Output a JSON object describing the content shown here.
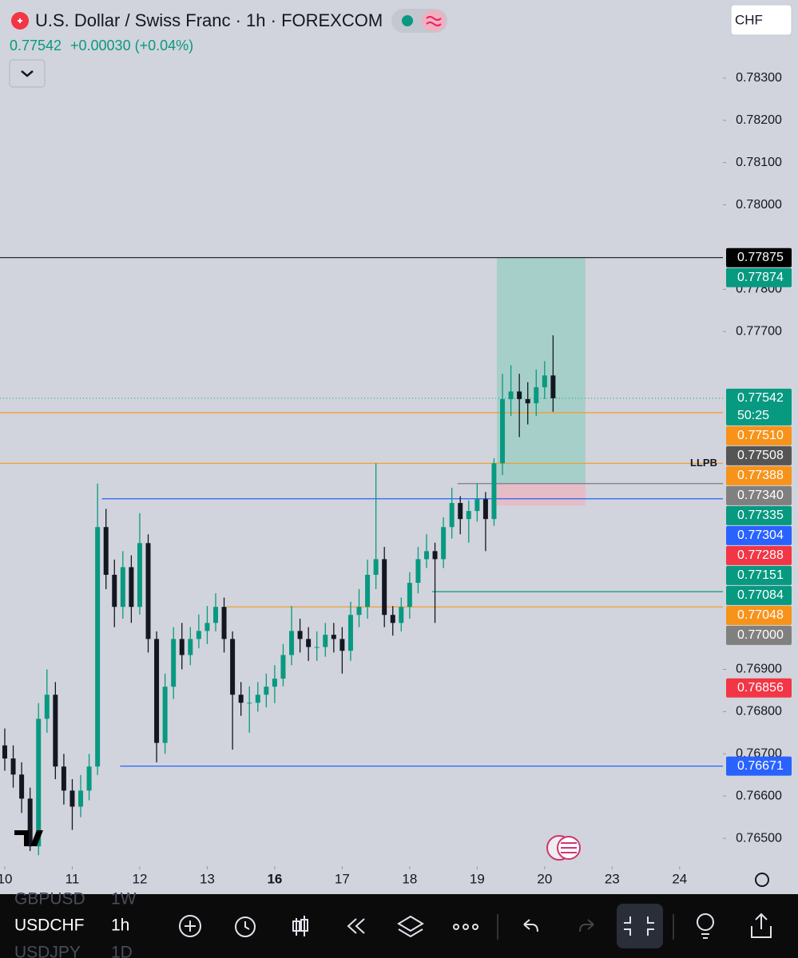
{
  "header": {
    "title": "U.S. Dollar / Swiss Franc · 1h · FOREXCOM",
    "price": "0.77542",
    "change": "+0.00030 (+0.04%)",
    "currency": "CHF"
  },
  "chart_data": {
    "type": "candlestick",
    "up_color": "#089981",
    "down_color": "#131722",
    "xlim": [
      -1.7,
      255.4
    ],
    "ylim": [
      0.76434,
      0.78485
    ],
    "xticks": [
      {
        "value": 0,
        "label": "10"
      },
      {
        "value": 24,
        "label": "11"
      },
      {
        "value": 48,
        "label": "12"
      },
      {
        "value": 72,
        "label": "13"
      },
      {
        "value": 96,
        "label": "16",
        "bold": true
      },
      {
        "value": 120,
        "label": "17"
      },
      {
        "value": 144,
        "label": "18"
      },
      {
        "value": 168,
        "label": "19"
      },
      {
        "value": 192,
        "label": "20"
      },
      {
        "value": 216,
        "label": "23"
      },
      {
        "value": 240,
        "label": "24"
      }
    ],
    "yticks": [
      {
        "value": 0.783,
        "label": "0.78300"
      },
      {
        "value": 0.782,
        "label": "0.78200"
      },
      {
        "value": 0.781,
        "label": "0.78100"
      },
      {
        "value": 0.78,
        "label": "0.78000"
      },
      {
        "value": 0.778,
        "label": "0.77800"
      },
      {
        "value": 0.777,
        "label": "0.77700"
      },
      {
        "value": 0.769,
        "label": "0.76900"
      },
      {
        "value": 0.768,
        "label": "0.76800"
      },
      {
        "value": 0.767,
        "label": "0.76700"
      },
      {
        "value": 0.766,
        "label": "0.76600"
      },
      {
        "value": 0.765,
        "label": "0.76500"
      }
    ],
    "x": [
      0,
      3,
      6,
      9,
      12,
      15,
      18,
      21,
      24,
      27,
      30,
      33,
      36,
      39,
      42,
      45,
      48,
      51,
      54,
      57,
      60,
      63,
      66,
      69,
      72,
      75,
      78,
      81,
      84,
      87,
      90,
      93,
      96,
      99,
      102,
      105,
      108,
      111,
      114,
      117,
      120,
      123,
      126,
      129,
      132,
      135,
      138,
      141,
      144,
      147,
      150,
      153,
      156,
      159,
      162,
      165,
      168,
      171,
      174,
      177,
      180,
      183,
      186,
      189,
      192,
      195
    ],
    "candles": [
      [
        0.7672,
        0.7676,
        0.7666,
        0.76689
      ],
      [
        0.76689,
        0.7672,
        0.7662,
        0.76651
      ],
      [
        0.76651,
        0.7668,
        0.7656,
        0.76594
      ],
      [
        0.76594,
        0.7662,
        0.7647,
        0.76481
      ],
      [
        0.76481,
        0.7682,
        0.7646,
        0.76783
      ],
      [
        0.76783,
        0.769,
        0.7675,
        0.7684
      ],
      [
        0.7684,
        0.7687,
        0.7664,
        0.7667
      ],
      [
        0.7667,
        0.767,
        0.7658,
        0.76613
      ],
      [
        0.76613,
        0.7664,
        0.7652,
        0.76575
      ],
      [
        0.76575,
        0.7665,
        0.7655,
        0.76613
      ],
      [
        0.76613,
        0.767,
        0.7659,
        0.7667
      ],
      [
        0.7667,
        0.7734,
        0.7665,
        0.77237
      ],
      [
        0.77237,
        0.7728,
        0.7709,
        0.77124
      ],
      [
        0.77124,
        0.7716,
        0.77,
        0.77048
      ],
      [
        0.77048,
        0.7718,
        0.7702,
        0.77142
      ],
      [
        0.77142,
        0.7717,
        0.7701,
        0.77048
      ],
      [
        0.77048,
        0.7727,
        0.7703,
        0.77199
      ],
      [
        0.77199,
        0.7722,
        0.7694,
        0.76972
      ],
      [
        0.76972,
        0.7699,
        0.7668,
        0.76726
      ],
      [
        0.76726,
        0.7689,
        0.767,
        0.76859
      ],
      [
        0.76859,
        0.77,
        0.7683,
        0.76972
      ],
      [
        0.76972,
        0.7701,
        0.769,
        0.76934
      ],
      [
        0.76934,
        0.77,
        0.7691,
        0.76972
      ],
      [
        0.76972,
        0.7703,
        0.7695,
        0.76991
      ],
      [
        0.76991,
        0.7705,
        0.7696,
        0.7701
      ],
      [
        0.7701,
        0.7708,
        0.7699,
        0.77048
      ],
      [
        0.77048,
        0.7707,
        0.7694,
        0.76972
      ],
      [
        0.76972,
        0.7699,
        0.7671,
        0.7684
      ],
      [
        0.7684,
        0.7687,
        0.7679,
        0.76821
      ],
      [
        0.76821,
        0.7686,
        0.7675,
        0.76821
      ],
      [
        0.76821,
        0.7687,
        0.768,
        0.7684
      ],
      [
        0.7684,
        0.7689,
        0.7681,
        0.76859
      ],
      [
        0.76859,
        0.7691,
        0.7682,
        0.76878
      ],
      [
        0.76878,
        0.7696,
        0.7686,
        0.76934
      ],
      [
        0.76934,
        0.7705,
        0.7691,
        0.76991
      ],
      [
        0.76991,
        0.7702,
        0.7694,
        0.76972
      ],
      [
        0.76972,
        0.77,
        0.7692,
        0.76953
      ],
      [
        0.76953,
        0.7699,
        0.7692,
        0.76953
      ],
      [
        0.76953,
        0.7701,
        0.7693,
        0.76982
      ],
      [
        0.76982,
        0.7701,
        0.7694,
        0.76972
      ],
      [
        0.76972,
        0.77,
        0.7689,
        0.76944
      ],
      [
        0.76944,
        0.7706,
        0.7692,
        0.77029
      ],
      [
        0.77029,
        0.7709,
        0.77,
        0.77048
      ],
      [
        0.77048,
        0.7716,
        0.7702,
        0.77124
      ],
      [
        0.77124,
        0.77388,
        0.7709,
        0.77161
      ],
      [
        0.77161,
        0.7719,
        0.77,
        0.77029
      ],
      [
        0.77029,
        0.7705,
        0.7698,
        0.7701
      ],
      [
        0.7701,
        0.7707,
        0.7699,
        0.77048
      ],
      [
        0.77048,
        0.7713,
        0.7702,
        0.77105
      ],
      [
        0.77105,
        0.7719,
        0.7708,
        0.77161
      ],
      [
        0.77161,
        0.7722,
        0.7714,
        0.7718
      ],
      [
        0.7718,
        0.772,
        0.7701,
        0.77161
      ],
      [
        0.77161,
        0.7726,
        0.7714,
        0.77237
      ],
      [
        0.77237,
        0.7733,
        0.7721,
        0.77294
      ],
      [
        0.77294,
        0.7731,
        0.7722,
        0.77256
      ],
      [
        0.77256,
        0.773,
        0.772,
        0.77275
      ],
      [
        0.77275,
        0.7734,
        0.7725,
        0.77303
      ],
      [
        0.77303,
        0.7732,
        0.7718,
        0.77256
      ],
      [
        0.77256,
        0.774,
        0.7724,
        0.77388
      ],
      [
        0.77388,
        0.776,
        0.7736,
        0.7754
      ],
      [
        0.7754,
        0.7762,
        0.775,
        0.77558
      ],
      [
        0.77558,
        0.776,
        0.7745,
        0.7754
      ],
      [
        0.7754,
        0.7758,
        0.7748,
        0.7753
      ],
      [
        0.7753,
        0.7761,
        0.775,
        0.77568
      ],
      [
        0.77568,
        0.7763,
        0.7754,
        0.77596
      ],
      [
        0.77596,
        0.77691,
        0.7751,
        0.77542
      ]
    ],
    "position": {
      "start": 175,
      "end": 206.5,
      "entry": 0.7734,
      "target": 0.77875,
      "stop": 0.77288,
      "profit_color": "#a7cfc9",
      "loss_color": "#e6bcc6"
    },
    "levels": [
      {
        "value": 0.77875,
        "color": "#131722"
      },
      {
        "value": 0.77542,
        "color": "#089981",
        "dotted": true
      },
      {
        "value": 0.77508,
        "color": "#f59a23"
      },
      {
        "value": 0.77388,
        "color": "#f59a23",
        "label": "LLPB"
      },
      {
        "value": 0.7734,
        "color": "#787b86",
        "from": 161
      },
      {
        "value": 0.77304,
        "color": "#2962ff",
        "from": 34.5
      },
      {
        "value": 0.77084,
        "color": "#089981",
        "from": 152
      },
      {
        "value": 0.77048,
        "color": "#f59a23",
        "from": 79
      },
      {
        "value": 0.76671,
        "color": "#2962ff",
        "from": 41
      }
    ],
    "price_labels": [
      {
        "value": 0.77875,
        "label": "0.77875",
        "color": "#000000"
      },
      {
        "value": 0.77874,
        "label": "0.77874",
        "color": "#089981"
      },
      {
        "value": 0.77542,
        "label": "0.77542",
        "color": "#089981",
        "countdown": "50:25"
      },
      {
        "value": 0.7751,
        "label": "0.77510",
        "color": "#f7931a"
      },
      {
        "value": 0.77508,
        "label": "0.77508",
        "color": "#555555"
      },
      {
        "value": 0.77388,
        "label": "0.77388",
        "color": "#f7931a"
      },
      {
        "value": 0.7734,
        "label": "0.77340",
        "color": "#808080"
      },
      {
        "value": 0.77335,
        "label": "0.77335",
        "color": "#089981"
      },
      {
        "value": 0.77304,
        "label": "0.77304",
        "color": "#2962ff"
      },
      {
        "value": 0.77288,
        "label": "0.77288",
        "color": "#f23645"
      },
      {
        "value": 0.77151,
        "label": "0.77151",
        "color": "#089981"
      },
      {
        "value": 0.77084,
        "label": "0.77084",
        "color": "#089981"
      },
      {
        "value": 0.77048,
        "label": "0.77048",
        "color": "#f7931a"
      },
      {
        "value": 0.77,
        "label": "0.77000",
        "color": "#808080"
      },
      {
        "value": 0.76856,
        "label": "0.76856",
        "color": "#f23645"
      },
      {
        "value": 0.76671,
        "label": "0.76671",
        "color": "#2962ff"
      }
    ]
  },
  "symbols": [
    {
      "symbol": "GBPUSD",
      "interval": "1W"
    },
    {
      "symbol": "USDCHF",
      "interval": "1h"
    },
    {
      "symbol": "USDJPY",
      "interval": "1D"
    }
  ]
}
